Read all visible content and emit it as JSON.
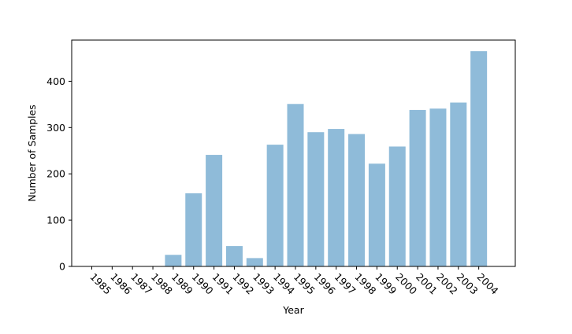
{
  "chart_data": {
    "type": "bar",
    "title": "",
    "xlabel": "Year",
    "ylabel": "Number of Samples",
    "categories": [
      "1985",
      "1986",
      "1987",
      "1988",
      "1989",
      "1990",
      "1991",
      "1992",
      "1993",
      "1994",
      "1995",
      "1996",
      "1997",
      "1998",
      "1999",
      "2000",
      "2001",
      "2002",
      "2003",
      "2004"
    ],
    "values": [
      0,
      0,
      0,
      0,
      25,
      158,
      241,
      44,
      18,
      263,
      351,
      290,
      297,
      286,
      222,
      259,
      338,
      341,
      354,
      465
    ],
    "ylim": [
      0,
      489
    ],
    "yticks": [
      0,
      100,
      200,
      300,
      400
    ],
    "xtick_rotation": -45,
    "grid": false,
    "legend": "none",
    "bar_color": "#8fbbd9"
  }
}
